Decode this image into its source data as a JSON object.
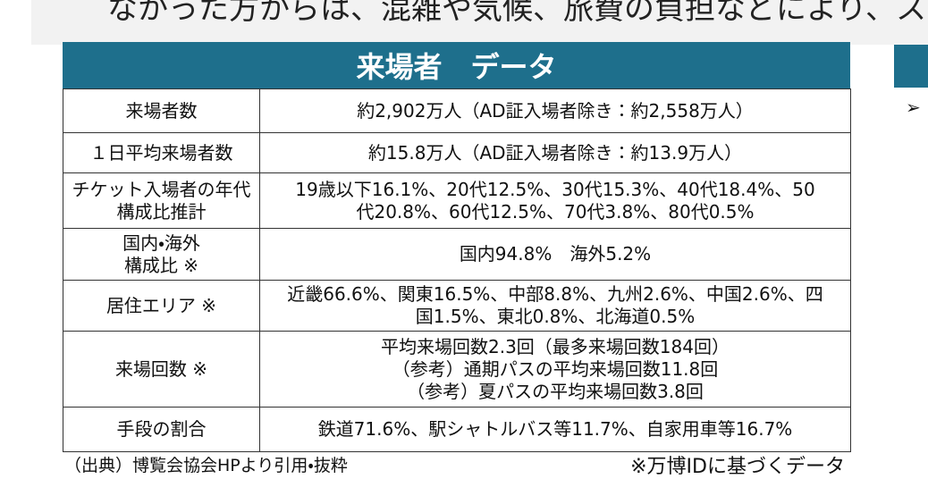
{
  "header_fragment": "なかった方からは、混雑や気候、旅費の負担などにより、ス",
  "table": {
    "title": "来場者　データ",
    "rows": [
      [
        [
          "来場者数"
        ],
        [
          "約2,902万人（AD証入場者除き：約2,558万人）"
        ]
      ],
      [
        [
          "１日平均来場者数"
        ],
        [
          "約15.8万人（AD証入場者除き：約13.9万人）"
        ]
      ],
      [
        [
          "チケット入場者の年代",
          "構成比推計"
        ],
        [
          "19歳以下16.1%、20代12.5%、30代15.3%、40代18.4%、50",
          "代20.8%、60代12.5%、70代3.8%、80代0.5%"
        ]
      ],
      [
        [
          "国内・海外",
          "構成比 ※"
        ],
        [
          "国内94.8%　海外5.2%"
        ]
      ],
      [
        [
          "居住エリア ※"
        ],
        [
          "近畿66.6%、関東16.5%、中部8.8%、九州2.6%、中国2.6%、四",
          "国1.5%、東北0.8%、北海道0.5%"
        ]
      ],
      [
        [
          "来場回数 ※"
        ],
        [
          "平均来場回数2.3回（最多来場回数184回）",
          "（参考）通期パスの平均来場回数11.8回",
          "（参考）夏パスの平均来場回数3.8回"
        ]
      ],
      [
        [
          "手段の割合"
        ],
        [
          "鉄道71.6%、駅シャトルバス等11.7%、自家用車等16.7%"
        ]
      ]
    ]
  },
  "notes": {
    "source": "（出典）博覧会協会HPより引用・抜粋",
    "remark": "※万博IDに基づくデータ"
  }
}
